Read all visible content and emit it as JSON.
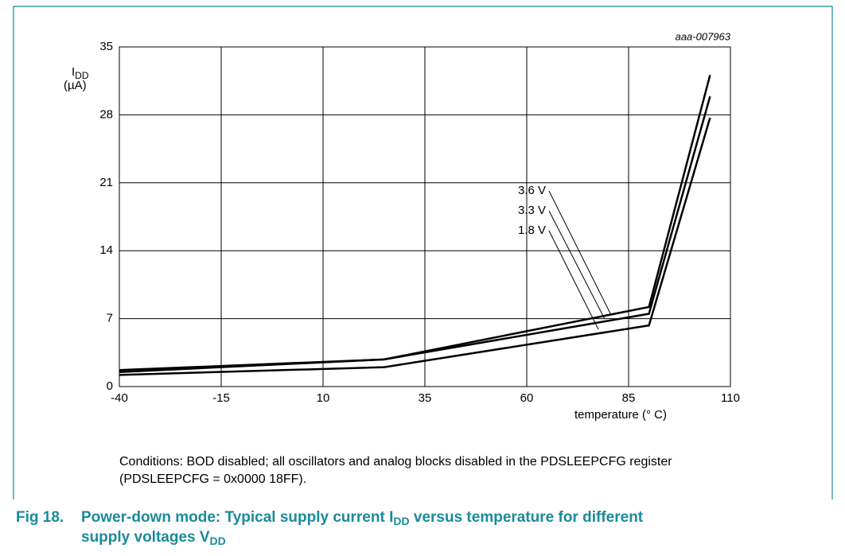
{
  "chart_data": {
    "type": "line",
    "code": "aaa-007963",
    "ylabel": {
      "main": "I",
      "sub": "DD",
      "unit": "(µA)"
    },
    "xlabel": "temperature (° C)",
    "x": [
      -40,
      25,
      90,
      105
    ],
    "series": [
      {
        "name": "3.6 V",
        "color": "#000000",
        "values": [
          1.7,
          2.8,
          8.2,
          32.1
        ]
      },
      {
        "name": "3.3 V",
        "color": "#000000",
        "values": [
          1.5,
          2.8,
          7.5,
          29.9
        ]
      },
      {
        "name": "1.8 V",
        "color": "#000000",
        "values": [
          1.2,
          2.0,
          6.3,
          27.7
        ]
      }
    ],
    "xlim": [
      -40,
      110
    ],
    "xticks": [
      -40,
      -15,
      10,
      35,
      60,
      85,
      110
    ],
    "ylim": [
      0,
      35
    ],
    "yticks": [
      0,
      7,
      14,
      21,
      28,
      35
    ],
    "grid": true
  },
  "conditions": [
    "Conditions: BOD disabled; all oscillators and analog blocks disabled in the PDSLEEPCFG register",
    "(PDSLEEPCFG = 0x0000 18FF)."
  ],
  "caption": {
    "number": "Fig 18.",
    "line1": [
      "Power-down mode: Typical supply current I",
      "DD",
      " versus temperature for different"
    ],
    "line2": [
      "supply voltages V",
      "DD"
    ]
  }
}
